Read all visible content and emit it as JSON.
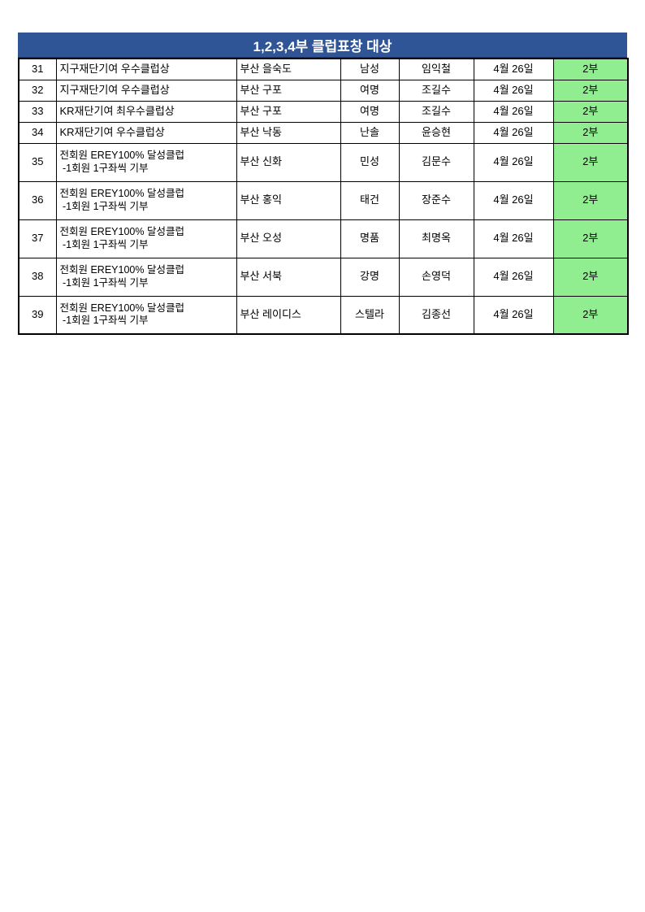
{
  "page": {
    "background_color": "#ffffff"
  },
  "table": {
    "title": "1,2,3,4부 클럽표창 대상",
    "title_bg_color": "#2F5597",
    "title_text_color": "#ffffff",
    "highlight_color": "#90EE90",
    "border_color": "#000000",
    "rows": [
      {
        "no": "31",
        "award_lines": [
          "지구재단기여 우수클럽상"
        ],
        "club": "부산 을숙도",
        "branch": "남성",
        "person": "임익철",
        "date": "4월 26일",
        "division": "2부"
      },
      {
        "no": "32",
        "award_lines": [
          "지구재단기여 우수클럽상"
        ],
        "club": "부산 구포",
        "branch": "여명",
        "person": "조길수",
        "date": "4월 26일",
        "division": "2부"
      },
      {
        "no": "33",
        "award_lines": [
          "KR재단기여 최우수클럽상"
        ],
        "club": "부산 구포",
        "branch": "여명",
        "person": "조길수",
        "date": "4월 26일",
        "division": "2부"
      },
      {
        "no": "34",
        "award_lines": [
          "KR재단기여 우수클럽상"
        ],
        "club": "부산 낙동",
        "branch": "난솔",
        "person": "윤승현",
        "date": "4월 26일",
        "division": "2부"
      },
      {
        "no": "35",
        "award_lines": [
          "전회원 EREY100% 달성클럽",
          " -1회원 1구좌씩 기부"
        ],
        "club": "부산 신화",
        "branch": "민성",
        "person": "김문수",
        "date": "4월 26일",
        "division": "2부"
      },
      {
        "no": "36",
        "award_lines": [
          "전회원 EREY100% 달성클럽",
          " -1회원 1구좌씩 기부"
        ],
        "club": "부산 홍익",
        "branch": "태건",
        "person": "장준수",
        "date": "4월 26일",
        "division": "2부"
      },
      {
        "no": "37",
        "award_lines": [
          "전회원 EREY100% 달성클럽",
          " -1회원 1구좌씩 기부"
        ],
        "club": "부산 오성",
        "branch": "명품",
        "person": "최명옥",
        "date": "4월 26일",
        "division": "2부"
      },
      {
        "no": "38",
        "award_lines": [
          "전회원 EREY100% 달성클럽",
          " -1회원 1구좌씩 기부"
        ],
        "club": "부산 서북",
        "branch": "강명",
        "person": "손영덕",
        "date": "4월 26일",
        "division": "2부"
      },
      {
        "no": "39",
        "award_lines": [
          "전회원 EREY100% 달성클럽",
          " -1회원 1구좌씩 기부"
        ],
        "club": "부산 레이디스",
        "branch": "스텔라",
        "person": "김종선",
        "date": "4월 26일",
        "division": "2부"
      }
    ]
  }
}
